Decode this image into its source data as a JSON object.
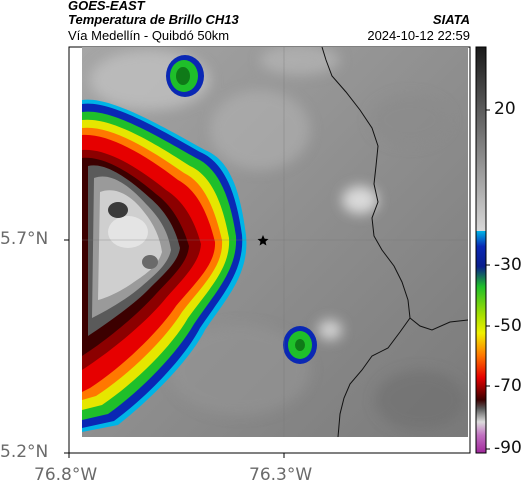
{
  "header": {
    "satellite": "GOES-EAST",
    "product": "Temperatura de Brillo CH13",
    "region": "Vía Medellín - Quibdó 50km",
    "source": "SIATA",
    "timestamp": "2024-10-12 22:59"
  },
  "axes": {
    "lat_ticks": [
      "5.7°N",
      "5.2°N"
    ],
    "lon_ticks": [
      "76.8°W",
      "76.3°W"
    ]
  },
  "colorbar": {
    "ticks": [
      "20",
      "-30",
      "-50",
      "-70",
      "-90"
    ],
    "colors": {
      "warm_top": "#1a1a1a",
      "warm_bottom": "#d2d2d2",
      "cyan": "#00b4e6",
      "blue": "#0a28b4",
      "green": "#1fbf2a",
      "yellow": "#f0f000",
      "orange": "#ff7800",
      "red": "#e60000",
      "dark_red": "#3c0000",
      "light": "#dcdcdc",
      "magenta": "#a0289b"
    }
  },
  "map": {
    "marker": "star-marker"
  }
}
